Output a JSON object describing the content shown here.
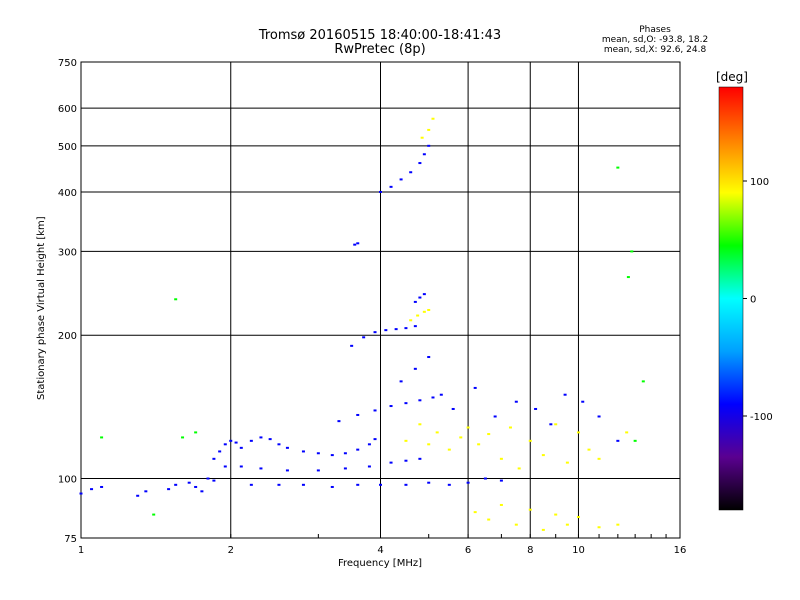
{
  "chart_data": {
    "type": "scatter",
    "title": "Tromsø 20160515 18:40:00-18:41:43",
    "subtitle": "RwPretec (8p)",
    "stats": {
      "heading": "Phases",
      "line1": "mean, sd,O: -93.8, 18.2",
      "line2": "mean, sd,X:  92.6, 24.8"
    },
    "xlabel": "Frequency [MHz]",
    "ylabel": "Stationary phase Virtual Height [km]",
    "x_scale": "log",
    "y_scale": "log",
    "xlim": [
      1,
      16
    ],
    "ylim": [
      75,
      750
    ],
    "x_ticks": [
      1,
      2,
      4,
      6,
      8,
      10,
      16
    ],
    "y_ticks": [
      75,
      100,
      200,
      300,
      400,
      500,
      600,
      750
    ],
    "grid": true,
    "colorbar": {
      "unit": "[deg]",
      "range": [
        -180,
        180
      ],
      "ticks": [
        100,
        0,
        -100
      ],
      "colors": [
        "#000000",
        "#5a0090",
        "#0000ff",
        "#00a0ff",
        "#00ffff",
        "#00ff00",
        "#ffff00",
        "#ff8000",
        "#ff0000"
      ]
    },
    "series": [
      {
        "values": [
          [
            1.0,
            93
          ],
          [
            1.05,
            95
          ],
          [
            1.1,
            96
          ],
          [
            1.3,
            92
          ],
          [
            1.35,
            94
          ],
          [
            1.5,
            95
          ],
          [
            1.55,
            97
          ],
          [
            1.65,
            98
          ],
          [
            1.7,
            96
          ],
          [
            1.75,
            94
          ],
          [
            1.8,
            100
          ],
          [
            1.85,
            99
          ]
        ],
        "phase": -95
      },
      {
        "values": [
          [
            1.85,
            110
          ],
          [
            1.9,
            114
          ],
          [
            1.95,
            118
          ],
          [
            2.0,
            120
          ],
          [
            2.05,
            119
          ],
          [
            2.1,
            116
          ],
          [
            2.2,
            120
          ],
          [
            2.3,
            122
          ],
          [
            2.4,
            121
          ],
          [
            2.5,
            118
          ],
          [
            2.6,
            116
          ],
          [
            2.8,
            114
          ],
          [
            3.0,
            113
          ],
          [
            3.2,
            112
          ],
          [
            3.4,
            113
          ],
          [
            3.6,
            115
          ],
          [
            3.8,
            118
          ],
          [
            3.9,
            121
          ]
        ],
        "phase": -100
      },
      {
        "values": [
          [
            1.95,
            106
          ],
          [
            2.1,
            106
          ],
          [
            2.3,
            105
          ],
          [
            2.6,
            104
          ],
          [
            3.0,
            104
          ],
          [
            3.4,
            105
          ],
          [
            3.8,
            106
          ],
          [
            4.2,
            108
          ],
          [
            4.5,
            109
          ],
          [
            4.8,
            110
          ]
        ],
        "phase": -105
      },
      {
        "values": [
          [
            2.2,
            97
          ],
          [
            2.5,
            97
          ],
          [
            2.8,
            97
          ],
          [
            3.2,
            96
          ],
          [
            3.6,
            97
          ],
          [
            4.0,
            97
          ],
          [
            4.5,
            97
          ],
          [
            5.0,
            98
          ],
          [
            5.5,
            97
          ],
          [
            6.0,
            98
          ],
          [
            6.5,
            100
          ],
          [
            7.0,
            99
          ]
        ],
        "phase": -100
      },
      {
        "values": [
          [
            3.3,
            132
          ],
          [
            3.6,
            136
          ],
          [
            3.9,
            139
          ],
          [
            4.2,
            142
          ],
          [
            4.5,
            144
          ],
          [
            4.8,
            146
          ],
          [
            5.1,
            148
          ]
        ],
        "phase": -100
      },
      {
        "values": [
          [
            3.5,
            190
          ],
          [
            3.7,
            198
          ],
          [
            3.9,
            203
          ],
          [
            4.1,
            205
          ],
          [
            4.3,
            206
          ],
          [
            4.5,
            207
          ],
          [
            4.7,
            209
          ]
        ],
        "phase": -100
      },
      {
        "values": [
          [
            4.6,
            215
          ],
          [
            4.75,
            220
          ],
          [
            4.9,
            224
          ],
          [
            5.0,
            226
          ]
        ],
        "phase": 110
      },
      {
        "values": [
          [
            4.7,
            235
          ],
          [
            4.8,
            240
          ],
          [
            4.9,
            244
          ]
        ],
        "phase": -100
      },
      {
        "values": [
          [
            3.55,
            310
          ],
          [
            3.6,
            312
          ]
        ],
        "phase": -110
      },
      {
        "values": [
          [
            4.0,
            400
          ],
          [
            4.2,
            410
          ],
          [
            4.4,
            425
          ],
          [
            4.6,
            440
          ],
          [
            4.8,
            460
          ],
          [
            4.9,
            480
          ],
          [
            5.0,
            500
          ]
        ],
        "phase": -100
      },
      {
        "values": [
          [
            4.85,
            520
          ],
          [
            5.0,
            540
          ],
          [
            5.1,
            570
          ]
        ],
        "phase": 110
      },
      {
        "values": [
          [
            4.5,
            120
          ],
          [
            4.8,
            130
          ],
          [
            5.0,
            118
          ],
          [
            5.2,
            125
          ],
          [
            5.5,
            115
          ],
          [
            5.8,
            122
          ],
          [
            6.0,
            128
          ],
          [
            6.3,
            118
          ],
          [
            6.6,
            124
          ],
          [
            7.0,
            110
          ],
          [
            7.3,
            128
          ],
          [
            7.6,
            105
          ],
          [
            8.0,
            120
          ],
          [
            8.5,
            112
          ],
          [
            9.0,
            130
          ],
          [
            9.5,
            108
          ],
          [
            10.0,
            125
          ],
          [
            10.5,
            115
          ],
          [
            11.0,
            110
          ],
          [
            12.5,
            125
          ]
        ],
        "phase": 100
      },
      {
        "values": [
          [
            4.4,
            160
          ],
          [
            4.7,
            170
          ],
          [
            5.0,
            180
          ],
          [
            5.3,
            150
          ],
          [
            5.6,
            140
          ],
          [
            6.2,
            155
          ],
          [
            6.8,
            135
          ],
          [
            7.5,
            145
          ],
          [
            8.2,
            140
          ],
          [
            8.8,
            130
          ],
          [
            9.4,
            150
          ],
          [
            10.2,
            145
          ],
          [
            11.0,
            135
          ],
          [
            12.0,
            120
          ]
        ],
        "phase": -100
      },
      {
        "values": [
          [
            6.2,
            85
          ],
          [
            6.6,
            82
          ],
          [
            7.0,
            88
          ],
          [
            7.5,
            80
          ],
          [
            8.0,
            86
          ],
          [
            8.5,
            78
          ],
          [
            9.0,
            84
          ],
          [
            9.5,
            80
          ],
          [
            10.0,
            83
          ],
          [
            11.0,
            79
          ],
          [
            12.0,
            80
          ]
        ],
        "phase": 80
      },
      {
        "values": [
          [
            1.1,
            122
          ],
          [
            1.6,
            122
          ],
          [
            1.7,
            125
          ],
          [
            1.55,
            238
          ],
          [
            13.5,
            160
          ],
          [
            12.0,
            450
          ],
          [
            12.8,
            300
          ],
          [
            12.6,
            265
          ],
          [
            13.0,
            120
          ],
          [
            1.4,
            84
          ]
        ],
        "phase": 60
      }
    ]
  }
}
